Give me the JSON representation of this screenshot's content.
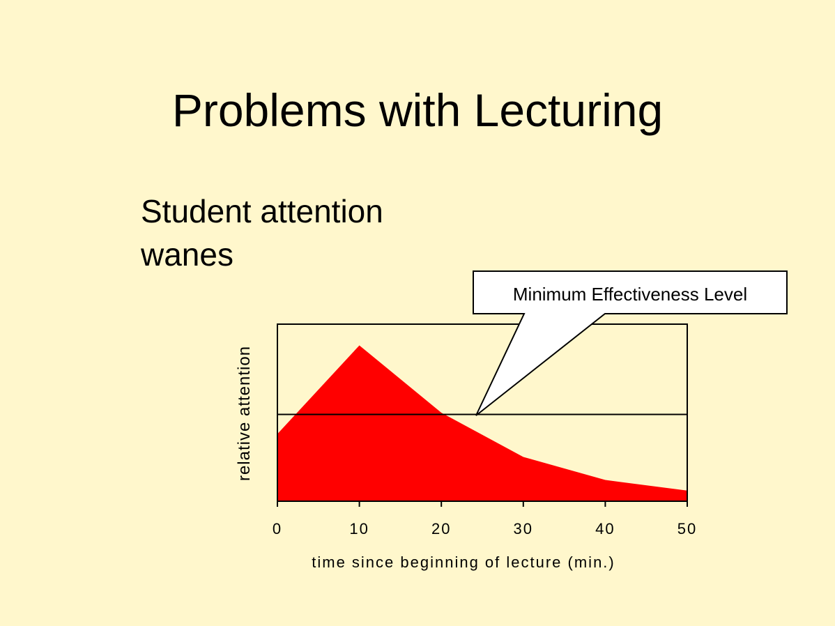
{
  "slide": {
    "title": "Problems with Lecturing",
    "subtitle_lines": [
      "Student attention",
      "wanes"
    ]
  },
  "chart_data": {
    "type": "area",
    "x": [
      0,
      10,
      20,
      30,
      40,
      50
    ],
    "y": [
      38,
      88,
      50,
      25,
      12,
      6
    ],
    "xlim": [
      0,
      50
    ],
    "ylim": [
      0,
      100
    ],
    "xticks": [
      "0",
      "10",
      "20",
      "30",
      "40",
      "50"
    ],
    "xlabel": "time since beginning of lecture (min.)",
    "ylabel": "relative attention",
    "threshold": 49,
    "annotation": "Minimum Effectiveness Level",
    "fill_color": "#FF0000",
    "grid": false
  }
}
